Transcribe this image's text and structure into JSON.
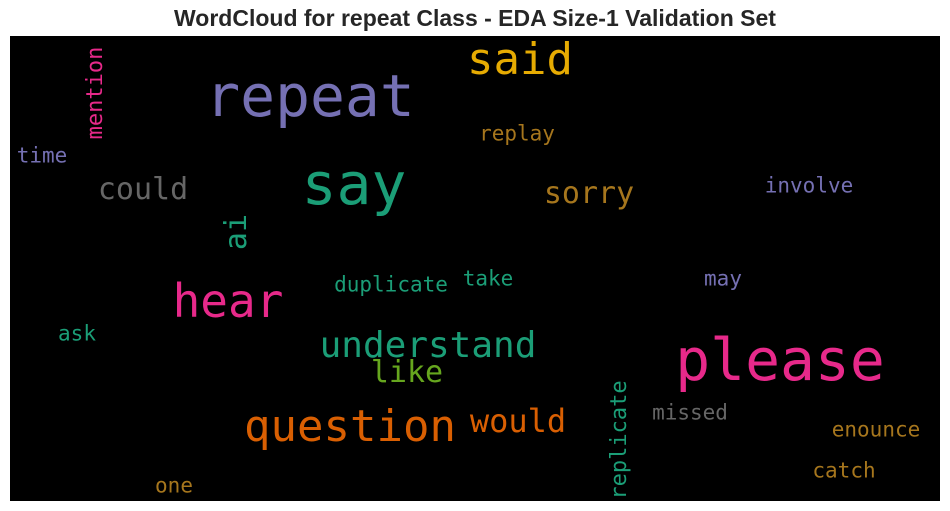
{
  "chart_data": {
    "type": "wordcloud",
    "title": "WordCloud for repeat Class - EDA Size-1 Validation Set",
    "background": "#000000",
    "words": [
      {
        "text": "please",
        "color": "#e7298a"
      },
      {
        "text": "repeat",
        "color": "#7570b3"
      },
      {
        "text": "say",
        "color": "#1b9e77"
      },
      {
        "text": "hear",
        "color": "#e7298a"
      },
      {
        "text": "question",
        "color": "#d95f02"
      },
      {
        "text": "said",
        "color": "#e6ab02"
      },
      {
        "text": "understand",
        "color": "#1b9e77"
      },
      {
        "text": "would",
        "color": "#d95f02"
      },
      {
        "text": "sorry",
        "color": "#a6761d"
      },
      {
        "text": "could",
        "color": "#666666"
      },
      {
        "text": "ai",
        "color": "#1b9e77"
      },
      {
        "text": "like",
        "color": "#66a61e"
      },
      {
        "text": "replicate",
        "color": "#1b9e77"
      },
      {
        "text": "mention",
        "color": "#e7298a"
      },
      {
        "text": "involve",
        "color": "#7570b3"
      },
      {
        "text": "duplicate",
        "color": "#1b9e77"
      },
      {
        "text": "replay",
        "color": "#a6761d"
      },
      {
        "text": "missed",
        "color": "#666666"
      },
      {
        "text": "enounce",
        "color": "#a6761d"
      },
      {
        "text": "catch",
        "color": "#a6761d"
      },
      {
        "text": "take",
        "color": "#1b9e77"
      },
      {
        "text": "may",
        "color": "#7570b3"
      },
      {
        "text": "time",
        "color": "#7570b3"
      },
      {
        "text": "ask",
        "color": "#1b9e77"
      },
      {
        "text": "one",
        "color": "#a6761d"
      }
    ]
  }
}
